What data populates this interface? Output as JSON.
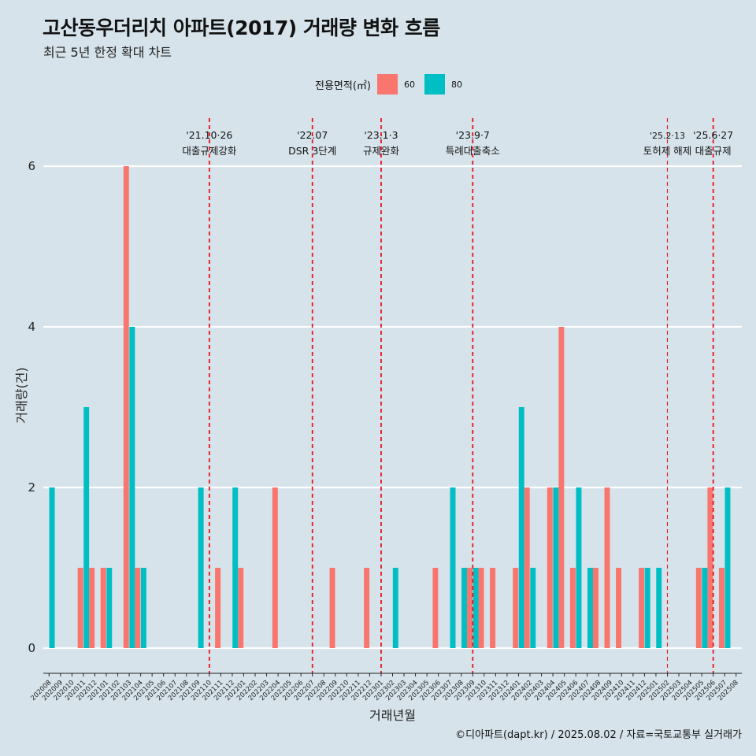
{
  "title": "고산동우더리치 아파트(2017) 거래량 변화 흐름",
  "subtitle": "최근 5년 한정 확대 차트",
  "legend": {
    "title": "전용면적(㎡)",
    "items": [
      {
        "label": "60",
        "color": "#f8766d"
      },
      {
        "label": "80",
        "color": "#00bfc4"
      }
    ]
  },
  "caption": "©디아파트(dapt.kr) / 2025.08.02 / 자료=국토교통부 실거래가",
  "chart_data": {
    "type": "bar",
    "title": "고산동우더리치 아파트(2017) 거래량 변화 흐름",
    "subtitle": "최근 5년 한정 확대 차트",
    "xlabel": "거래년월",
    "ylabel": "거래량(건)",
    "ylim": [
      0,
      6.5
    ],
    "yticks": [
      0,
      2,
      4,
      6
    ],
    "grid": "horizontal",
    "legend_position": "top",
    "categories": [
      "202008",
      "202009",
      "202010",
      "202011",
      "202012",
      "202101",
      "202102",
      "202103",
      "202104",
      "202105",
      "202106",
      "202107",
      "202108",
      "202109",
      "202110",
      "202111",
      "202112",
      "202201",
      "202202",
      "202203",
      "202204",
      "202205",
      "202206",
      "202207",
      "202208",
      "202209",
      "202210",
      "202211",
      "202212",
      "202301",
      "202302",
      "202303",
      "202304",
      "202305",
      "202306",
      "202307",
      "202308",
      "202309",
      "202310",
      "202311",
      "202312",
      "202401",
      "202402",
      "202403",
      "202404",
      "202405",
      "202406",
      "202407",
      "202408",
      "202409",
      "202410",
      "202411",
      "202412",
      "202501",
      "202502",
      "202503",
      "202504",
      "202505",
      "202506",
      "202507",
      "202508"
    ],
    "series": [
      {
        "name": "60",
        "color": "#f8766d",
        "values": [
          0,
          0,
          0,
          1,
          1,
          1,
          0,
          6,
          1,
          0,
          0,
          0,
          0,
          0,
          0,
          1,
          0,
          1,
          0,
          0,
          2,
          0,
          0,
          0,
          0,
          1,
          0,
          0,
          1,
          0,
          0,
          0,
          0,
          0,
          1,
          0,
          0,
          1,
          1,
          1,
          0,
          1,
          2,
          0,
          2,
          4,
          1,
          0,
          1,
          2,
          1,
          0,
          1,
          0,
          0,
          0,
          0,
          1,
          2,
          1,
          0
        ]
      },
      {
        "name": "80",
        "color": "#00bfc4",
        "values": [
          2,
          0,
          0,
          3,
          0,
          1,
          0,
          4,
          1,
          0,
          0,
          0,
          0,
          2,
          0,
          0,
          2,
          0,
          0,
          0,
          0,
          0,
          0,
          0,
          0,
          0,
          0,
          0,
          0,
          0,
          1,
          0,
          0,
          0,
          0,
          2,
          1,
          1,
          0,
          0,
          0,
          3,
          1,
          0,
          2,
          0,
          2,
          1,
          0,
          0,
          0,
          0,
          1,
          1,
          0,
          0,
          0,
          1,
          0,
          2,
          0
        ]
      }
    ],
    "annotations": [
      {
        "x": "202110",
        "lines": [
          "'21.10·26",
          "대출규제강화"
        ],
        "style": "thick"
      },
      {
        "x": "202207",
        "lines": [
          "'22.07",
          "DSR 3단계"
        ],
        "style": "thick"
      },
      {
        "x": "202301",
        "lines": [
          "'23.1·3",
          "규제완화"
        ],
        "style": "thick"
      },
      {
        "x": "202309",
        "lines": [
          "'23.9·7",
          "특례대출축소"
        ],
        "style": "thick"
      },
      {
        "x": "202502",
        "lines": [
          "'25.2·13",
          "토허제 해제"
        ],
        "style": "thin"
      },
      {
        "x": "202506",
        "lines": [
          "'25.6·27",
          "대출규제"
        ],
        "style": "thick"
      }
    ]
  }
}
